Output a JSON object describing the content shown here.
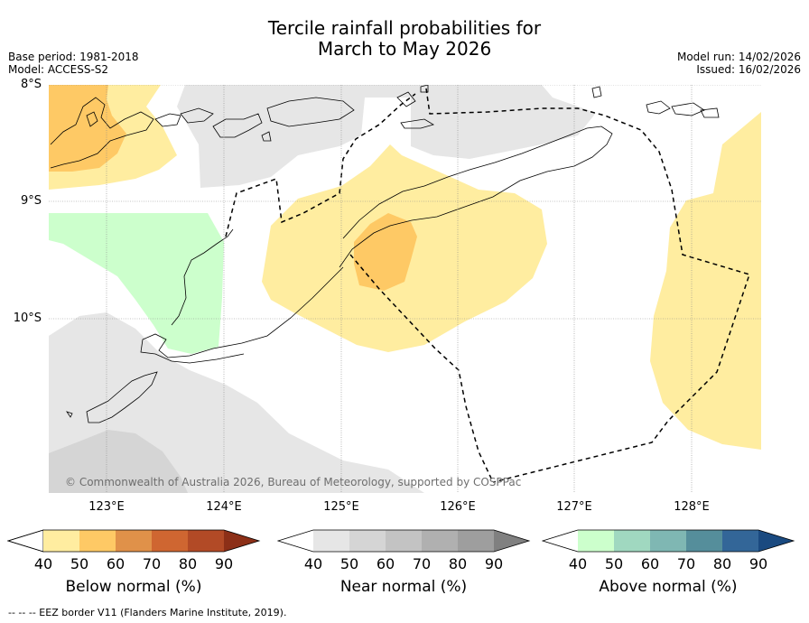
{
  "title_line1": "Tercile rainfall probabilities for",
  "title_line2": "March to May 2026",
  "base_period": "Base period: 1981-2018",
  "model": "Model: ACCESS-S2",
  "model_run": "Model run: 14/02/2026",
  "issued": "Issued: 16/02/2026",
  "credit": "© Commonwealth of Australia 2026, Bureau of Meteorology, supported by COSPPac",
  "lat_labels": [
    "8°S",
    "9°S",
    "10°S"
  ],
  "lon_labels": [
    "123°E",
    "124°E",
    "125°E",
    "126°E",
    "127°E",
    "128°E"
  ],
  "legends": [
    {
      "label": "Below normal (%)",
      "ticks": [
        "40",
        "50",
        "60",
        "70",
        "80",
        "90"
      ],
      "colors": [
        "#ffffff",
        "#ffeda0",
        "#fec965",
        "#e09149",
        "#cf6631",
        "#b24a26",
        "#8c2f17"
      ]
    },
    {
      "label": "Near normal (%)",
      "ticks": [
        "40",
        "50",
        "60",
        "70",
        "80",
        "90"
      ],
      "colors": [
        "#ffffff",
        "#e6e6e6",
        "#d5d5d5",
        "#c3c3c3",
        "#b0b0b0",
        "#9e9e9e",
        "#808080"
      ]
    },
    {
      "label": "Above normal (%)",
      "ticks": [
        "40",
        "50",
        "60",
        "70",
        "80",
        "90"
      ],
      "colors": [
        "#ffffff",
        "#ccffcc",
        "#a0d8c0",
        "#7fb7b3",
        "#558e9b",
        "#336698",
        "#1a4a80"
      ]
    }
  ],
  "eez_note": "-- -- -- EEZ border V11 (Flanders Marine Institute, 2019)."
}
